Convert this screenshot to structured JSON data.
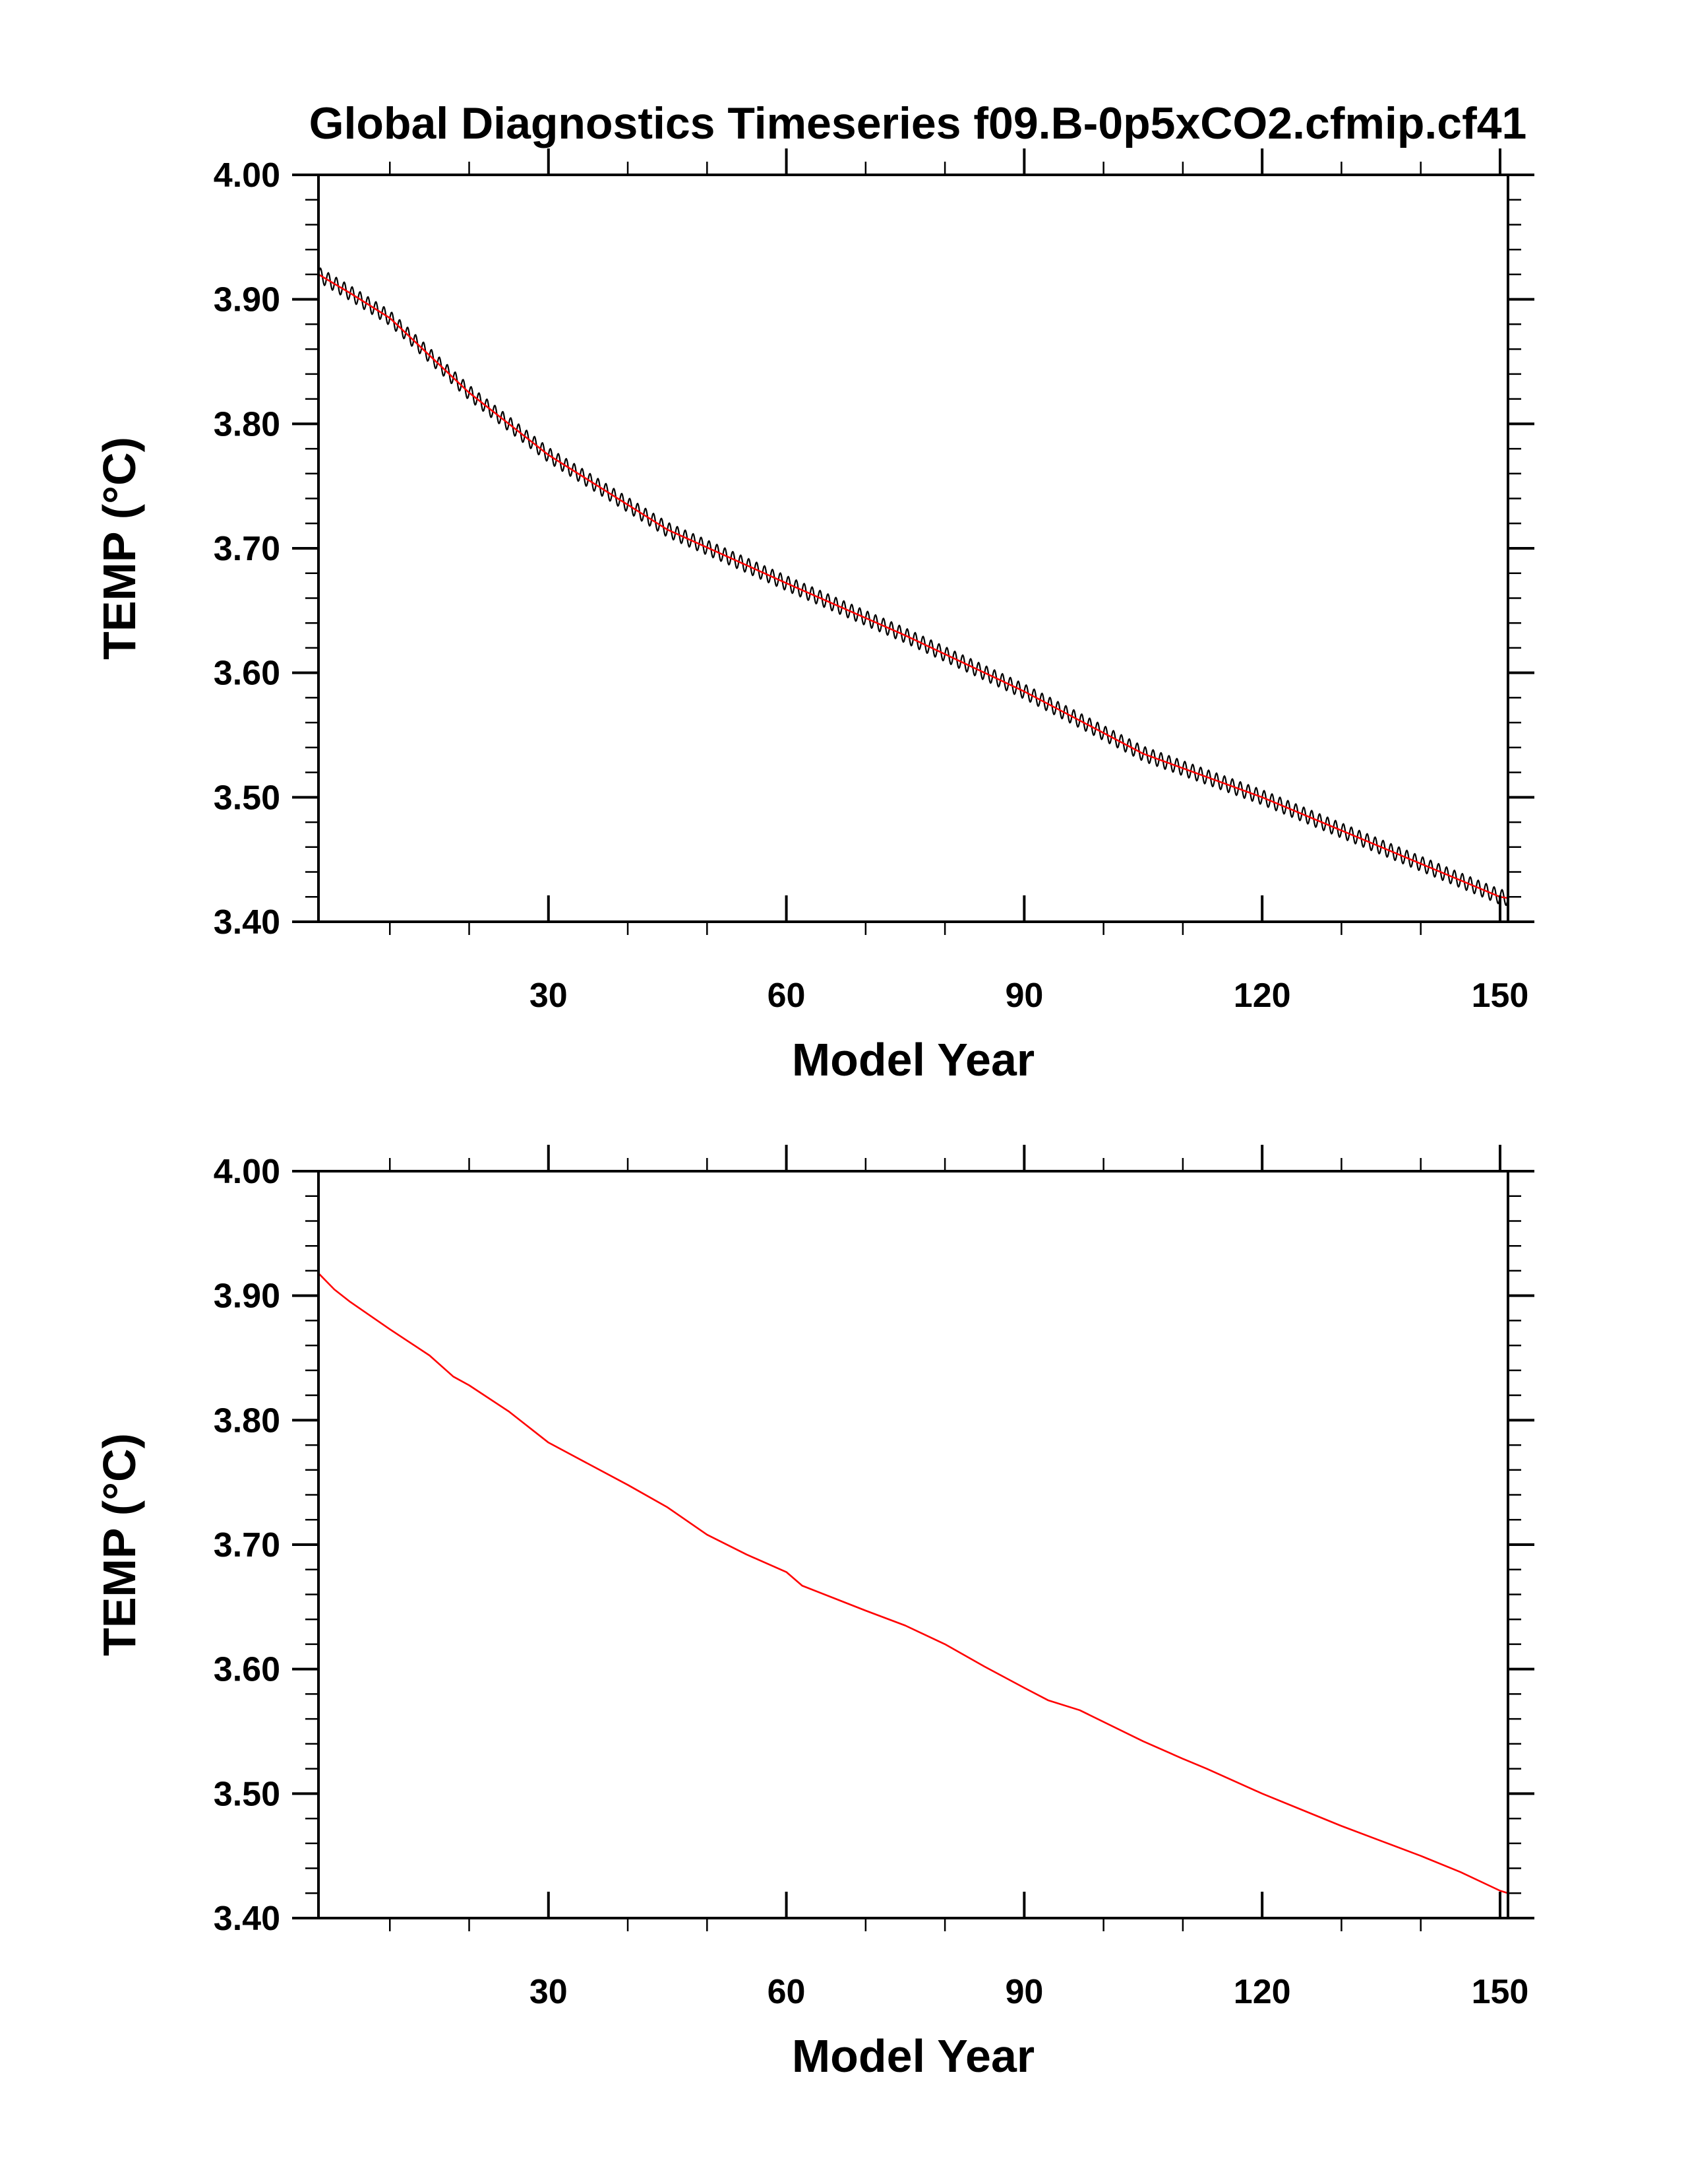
{
  "title": "Global Diagnostics Timeseries f09.B-0p5xCO2.cfmip.cf41",
  "colors": {
    "red": "#ff0000",
    "black": "#000000",
    "background": "#ffffff"
  },
  "chart_data": [
    {
      "type": "line",
      "panel": "top",
      "title": "Global Diagnostics Timeseries f09.B-0p5xCO2.cfmip.cf41",
      "xlabel": "Model Year",
      "ylabel": "TEMP (°C)",
      "xlim": [
        1,
        151
      ],
      "ylim": [
        3.4,
        4.0
      ],
      "xticks": [
        "30",
        "60",
        "90",
        "120",
        "150"
      ],
      "yticks": [
        "3.40",
        "3.50",
        "3.60",
        "3.70",
        "3.80",
        "3.90",
        "4.00"
      ],
      "grid": false,
      "legend": "none",
      "series": [
        {
          "color": "#000000",
          "style": "monthly",
          "seasonal_amplitude": 0.006,
          "x": [
            1,
            5,
            10,
            20,
            30,
            45,
            60,
            75,
            90,
            105,
            120,
            135,
            150,
            151
          ],
          "y": [
            3.92,
            3.905,
            3.885,
            3.825,
            3.775,
            3.715,
            3.672,
            3.63,
            3.585,
            3.535,
            3.5,
            3.46,
            3.42,
            3.419
          ]
        },
        {
          "color": "#ff0000",
          "style": "annual",
          "x": [
            1,
            5,
            10,
            20,
            30,
            45,
            60,
            75,
            90,
            105,
            120,
            135,
            150,
            151
          ],
          "y": [
            3.92,
            3.905,
            3.885,
            3.825,
            3.775,
            3.715,
            3.672,
            3.63,
            3.585,
            3.535,
            3.5,
            3.46,
            3.42,
            3.419
          ]
        }
      ]
    },
    {
      "type": "line",
      "panel": "bottom",
      "xlabel": "Model Year",
      "ylabel": "TEMP (°C)",
      "xlim": [
        1,
        151
      ],
      "ylim": [
        3.4,
        4.0
      ],
      "xticks": [
        "30",
        "60",
        "90",
        "120",
        "150"
      ],
      "yticks": [
        "3.40",
        "3.50",
        "3.60",
        "3.70",
        "3.80",
        "3.90",
        "4.00"
      ],
      "grid": false,
      "legend": "none",
      "series": [
        {
          "color": "#ff0000",
          "style": "annual",
          "x": [
            1,
            3,
            5,
            10,
            15,
            18,
            20,
            25,
            28,
            30,
            35,
            40,
            45,
            50,
            55,
            60,
            62,
            70,
            75,
            80,
            85,
            90,
            93,
            97,
            105,
            110,
            113,
            120,
            125,
            130,
            135,
            140,
            145,
            150,
            151
          ],
          "y": [
            3.918,
            3.905,
            3.895,
            3.873,
            3.852,
            3.835,
            3.828,
            3.807,
            3.792,
            3.782,
            3.765,
            3.748,
            3.73,
            3.708,
            3.692,
            3.678,
            3.667,
            3.647,
            3.635,
            3.62,
            3.602,
            3.585,
            3.575,
            3.567,
            3.542,
            3.528,
            3.52,
            3.5,
            3.487,
            3.474,
            3.462,
            3.45,
            3.437,
            3.422,
            3.42
          ]
        }
      ]
    }
  ]
}
